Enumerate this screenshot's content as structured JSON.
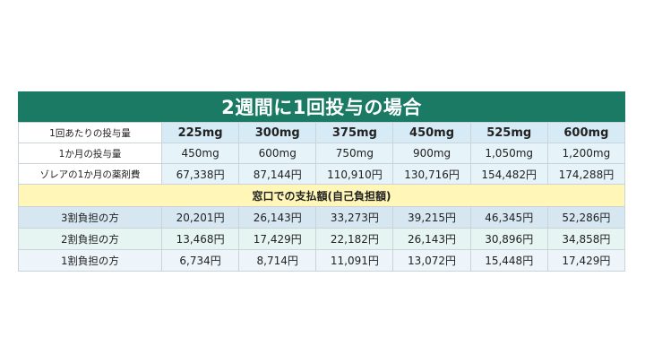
{
  "title": "2週間に1回投与の場合",
  "columns": [
    "225mg",
    "300mg",
    "375mg",
    "450mg",
    "525mg",
    "600mg"
  ],
  "rows": {
    "dose": {
      "label": "1回あたりの投与量"
    },
    "monthly": {
      "label": "1か月の投与量",
      "values": [
        "450mg",
        "600mg",
        "750mg",
        "900mg",
        "1,050mg",
        "1,200mg"
      ]
    },
    "cost": {
      "label": "ゾレアの1か月の薬剤費",
      "values": [
        "67,338円",
        "87,144円",
        "110,910円",
        "130,716円",
        "154,482円",
        "174,288円"
      ]
    }
  },
  "banner": "窓口での支払額(自己負担額)",
  "copay": [
    {
      "label": "3割負担の方",
      "values": [
        "20,201円",
        "26,143円",
        "33,273円",
        "39,215円",
        "46,345円",
        "52,286円"
      ]
    },
    {
      "label": "2割負担の方",
      "values": [
        "13,468円",
        "17,429円",
        "22,182円",
        "26,143円",
        "30,896円",
        "34,858円"
      ]
    },
    {
      "label": "1割負担の方",
      "values": [
        "6,734円",
        "8,714円",
        "11,091円",
        "13,072円",
        "15,448円",
        "17,429円"
      ]
    }
  ],
  "colors": {
    "header": "#1a7a63",
    "banner": "#fff6b8"
  }
}
